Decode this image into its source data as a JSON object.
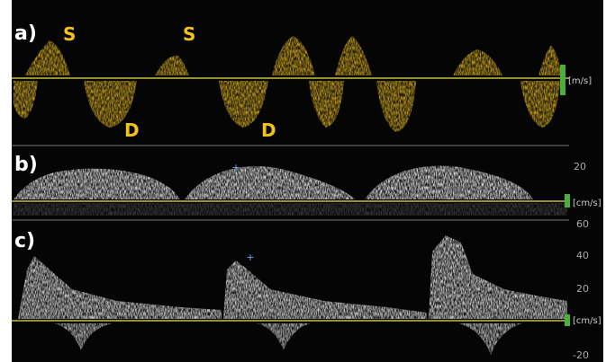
{
  "panels": [
    {
      "label": "a)",
      "annotations": [
        "S",
        "S",
        "D",
        "D"
      ],
      "unit": "[m/s]"
    },
    {
      "label": "b)",
      "unit": "[cm/s]",
      "ticks": [
        "20"
      ]
    },
    {
      "label": "c)",
      "unit": "[cm/s]",
      "ticks": [
        "60",
        "40",
        "20",
        "-20"
      ]
    }
  ]
}
